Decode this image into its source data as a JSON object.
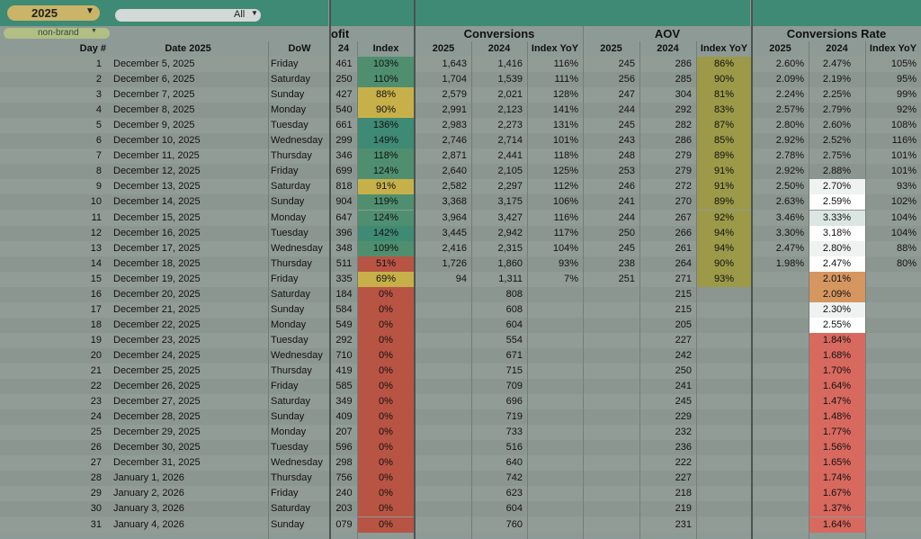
{
  "filters": {
    "year": "2025",
    "all": "All",
    "segment": "non-brand",
    "caret": "▼"
  },
  "group_headers": {
    "profit": "ofit",
    "conversions": "Conversions",
    "aov": "AOV",
    "conv_rate": "Conversions Rate"
  },
  "columns": {
    "day": "Day #",
    "date": "Date 2025",
    "dow": "DoW",
    "profit_2024": "24",
    "profit_index": "Index",
    "conv_2025": "2025",
    "conv_2024": "2024",
    "conv_yoy": "Index YoY",
    "aov_2025": "2025",
    "aov_2024": "2024",
    "aov_yoy": "Index YoY",
    "cr_2025": "2025",
    "cr_2024": "2024",
    "cr_yoy": "Index YoY"
  },
  "colors": {
    "teal": "#3f8a74",
    "green": "#4f8f70",
    "olive": "#9c9a48",
    "yellow": "#c7b04a",
    "orange": "#d69660",
    "red": "#b85444",
    "red_strong": "#d8695f",
    "white": "#ffffff",
    "cr_light": "#eef3f1",
    "cr_lighter": "#dbe5e1"
  },
  "rows": [
    {
      "day": "1",
      "date": "December 5, 2025",
      "dow": "Friday",
      "p24": "461",
      "pidx": "103%",
      "pidx_c": "green",
      "c25": "1,643",
      "c24": "1,416",
      "cyoy": "116%",
      "a25": "245",
      "a24": "286",
      "ayoy": "86%",
      "ayoy_c": "olive",
      "r25": "2.60%",
      "r24": "2.47%",
      "r24_c": "",
      "ryoy": "105%",
      "hl": false
    },
    {
      "day": "2",
      "date": "December 6, 2025",
      "dow": "Saturday",
      "p24": "250",
      "pidx": "110%",
      "pidx_c": "green",
      "c25": "1,704",
      "c24": "1,539",
      "cyoy": "111%",
      "a25": "256",
      "a24": "285",
      "ayoy": "90%",
      "ayoy_c": "olive",
      "r25": "2.09%",
      "r24": "2.19%",
      "r24_c": "",
      "ryoy": "95%",
      "hl": false
    },
    {
      "day": "3",
      "date": "December 7, 2025",
      "dow": "Sunday",
      "p24": "427",
      "pidx": "88%",
      "pidx_c": "yellow",
      "c25": "2,579",
      "c24": "2,021",
      "cyoy": "128%",
      "a25": "247",
      "a24": "304",
      "ayoy": "81%",
      "ayoy_c": "olive",
      "r25": "2.24%",
      "r24": "2.25%",
      "r24_c": "",
      "ryoy": "99%",
      "hl": false
    },
    {
      "day": "4",
      "date": "December 8, 2025",
      "dow": "Monday",
      "p24": "540",
      "pidx": "90%",
      "pidx_c": "yellow",
      "c25": "2,991",
      "c24": "2,123",
      "cyoy": "141%",
      "a25": "244",
      "a24": "292",
      "ayoy": "83%",
      "ayoy_c": "olive",
      "r25": "2.57%",
      "r24": "2.79%",
      "r24_c": "",
      "ryoy": "92%",
      "hl": false
    },
    {
      "day": "5",
      "date": "December 9, 2025",
      "dow": "Tuesday",
      "p24": "661",
      "pidx": "136%",
      "pidx_c": "teal",
      "c25": "2,983",
      "c24": "2,273",
      "cyoy": "131%",
      "a25": "245",
      "a24": "282",
      "ayoy": "87%",
      "ayoy_c": "olive",
      "r25": "2.80%",
      "r24": "2.60%",
      "r24_c": "",
      "ryoy": "108%",
      "hl": false
    },
    {
      "day": "6",
      "date": "December 10, 2025",
      "dow": "Wednesday",
      "p24": "299",
      "pidx": "149%",
      "pidx_c": "teal",
      "c25": "2,746",
      "c24": "2,714",
      "cyoy": "101%",
      "a25": "243",
      "a24": "286",
      "ayoy": "85%",
      "ayoy_c": "olive",
      "r25": "2.92%",
      "r24": "2.52%",
      "r24_c": "",
      "ryoy": "116%",
      "hl": false
    },
    {
      "day": "7",
      "date": "December 11, 2025",
      "dow": "Thursday",
      "p24": "346",
      "pidx": "118%",
      "pidx_c": "green",
      "c25": "2,871",
      "c24": "2,441",
      "cyoy": "118%",
      "a25": "248",
      "a24": "279",
      "ayoy": "89%",
      "ayoy_c": "olive",
      "r25": "2.78%",
      "r24": "2.75%",
      "r24_c": "",
      "ryoy": "101%",
      "hl": false
    },
    {
      "day": "8",
      "date": "December 12, 2025",
      "dow": "Friday",
      "p24": "699",
      "pidx": "124%",
      "pidx_c": "green",
      "c25": "2,640",
      "c24": "2,105",
      "cyoy": "125%",
      "a25": "253",
      "a24": "279",
      "ayoy": "91%",
      "ayoy_c": "olive",
      "r25": "2.92%",
      "r24": "2.88%",
      "r24_c": "",
      "ryoy": "101%",
      "hl": false
    },
    {
      "day": "9",
      "date": "December 13, 2025",
      "dow": "Saturday",
      "p24": "818",
      "pidx": "91%",
      "pidx_c": "yellow",
      "c25": "2,582",
      "c24": "2,297",
      "cyoy": "112%",
      "a25": "246",
      "a24": "272",
      "ayoy": "91%",
      "ayoy_c": "olive",
      "r25": "2.50%",
      "r24": "2.70%",
      "r24_c": "cr_light",
      "ryoy": "93%",
      "hl": true
    },
    {
      "day": "10",
      "date": "December 14, 2025",
      "dow": "Sunday",
      "p24": "904",
      "pidx": "119%",
      "pidx_c": "green",
      "c25": "3,368",
      "c24": "3,175",
      "cyoy": "106%",
      "a25": "241",
      "a24": "270",
      "ayoy": "89%",
      "ayoy_c": "olive",
      "r25": "2.63%",
      "r24": "2.59%",
      "r24_c": "white",
      "ryoy": "102%",
      "hl": true
    },
    {
      "day": "11",
      "date": "December 15, 2025",
      "dow": "Monday",
      "p24": "647",
      "pidx": "124%",
      "pidx_c": "green",
      "c25": "3,964",
      "c24": "3,427",
      "cyoy": "116%",
      "a25": "244",
      "a24": "267",
      "ayoy": "92%",
      "ayoy_c": "olive",
      "r25": "3.46%",
      "r24": "3.33%",
      "r24_c": "cr_lighter",
      "ryoy": "104%",
      "hl": true
    },
    {
      "day": "12",
      "date": "December 16, 2025",
      "dow": "Tuesday",
      "p24": "396",
      "pidx": "142%",
      "pidx_c": "teal",
      "c25": "3,445",
      "c24": "2,942",
      "cyoy": "117%",
      "a25": "250",
      "a24": "266",
      "ayoy": "94%",
      "ayoy_c": "olive",
      "r25": "3.30%",
      "r24": "3.18%",
      "r24_c": "white",
      "ryoy": "104%",
      "hl": true
    },
    {
      "day": "13",
      "date": "December 17, 2025",
      "dow": "Wednesday",
      "p24": "348",
      "pidx": "109%",
      "pidx_c": "green",
      "c25": "2,416",
      "c24": "2,315",
      "cyoy": "104%",
      "a25": "245",
      "a24": "261",
      "ayoy": "94%",
      "ayoy_c": "olive",
      "r25": "2.47%",
      "r24": "2.80%",
      "r24_c": "cr_light",
      "ryoy": "88%",
      "hl": true
    },
    {
      "day": "14",
      "date": "December 18, 2025",
      "dow": "Thursday",
      "p24": "511",
      "pidx": "51%",
      "pidx_c": "red",
      "c25": "1,726",
      "c24": "1,860",
      "cyoy": "93%",
      "a25": "238",
      "a24": "264",
      "ayoy": "90%",
      "ayoy_c": "olive",
      "r25": "1.98%",
      "r24": "2.47%",
      "r24_c": "white",
      "ryoy": "80%",
      "hl": true
    },
    {
      "day": "15",
      "date": "December 19, 2025",
      "dow": "Friday",
      "p24": "335",
      "pidx": "69%",
      "pidx_c": "yellow",
      "c25": "94",
      "c24": "1,311",
      "cyoy": "7%",
      "a25": "251",
      "a24": "271",
      "ayoy": "93%",
      "ayoy_c": "olive",
      "r25": "",
      "r24": "2.01%",
      "r24_c": "orange",
      "ryoy": "",
      "hl": true
    },
    {
      "day": "16",
      "date": "December 20, 2025",
      "dow": "Saturday",
      "p24": "184",
      "pidx": "0%",
      "pidx_c": "red",
      "c25": "",
      "c24": "808",
      "cyoy": "",
      "a25": "",
      "a24": "215",
      "ayoy": "",
      "ayoy_c": "",
      "r25": "",
      "r24": "2.09%",
      "r24_c": "orange",
      "ryoy": "",
      "hl": true
    },
    {
      "day": "17",
      "date": "December 21, 2025",
      "dow": "Sunday",
      "p24": "584",
      "pidx": "0%",
      "pidx_c": "red",
      "c25": "",
      "c24": "608",
      "cyoy": "",
      "a25": "",
      "a24": "215",
      "ayoy": "",
      "ayoy_c": "",
      "r25": "",
      "r24": "2.30%",
      "r24_c": "cr_light",
      "ryoy": "",
      "hl": true
    },
    {
      "day": "18",
      "date": "December 22, 2025",
      "dow": "Monday",
      "p24": "549",
      "pidx": "0%",
      "pidx_c": "red",
      "c25": "",
      "c24": "604",
      "cyoy": "",
      "a25": "",
      "a24": "205",
      "ayoy": "",
      "ayoy_c": "",
      "r25": "",
      "r24": "2.55%",
      "r24_c": "white",
      "ryoy": "",
      "hl": true
    },
    {
      "day": "19",
      "date": "December 23, 2025",
      "dow": "Tuesday",
      "p24": "292",
      "pidx": "0%",
      "pidx_c": "red",
      "c25": "",
      "c24": "554",
      "cyoy": "",
      "a25": "",
      "a24": "227",
      "ayoy": "",
      "ayoy_c": "",
      "r25": "",
      "r24": "1.84%",
      "r24_c": "red_strong",
      "ryoy": "",
      "hl": true
    },
    {
      "day": "20",
      "date": "December 24, 2025",
      "dow": "Wednesday",
      "p24": "710",
      "pidx": "0%",
      "pidx_c": "red",
      "c25": "",
      "c24": "671",
      "cyoy": "",
      "a25": "",
      "a24": "242",
      "ayoy": "",
      "ayoy_c": "",
      "r25": "",
      "r24": "1.68%",
      "r24_c": "red_strong",
      "ryoy": "",
      "hl": true
    },
    {
      "day": "21",
      "date": "December 25, 2025",
      "dow": "Thursday",
      "p24": "419",
      "pidx": "0%",
      "pidx_c": "red",
      "c25": "",
      "c24": "715",
      "cyoy": "",
      "a25": "",
      "a24": "250",
      "ayoy": "",
      "ayoy_c": "",
      "r25": "",
      "r24": "1.70%",
      "r24_c": "red_strong",
      "ryoy": "",
      "hl": true
    },
    {
      "day": "22",
      "date": "December 26, 2025",
      "dow": "Friday",
      "p24": "585",
      "pidx": "0%",
      "pidx_c": "red",
      "c25": "",
      "c24": "709",
      "cyoy": "",
      "a25": "",
      "a24": "241",
      "ayoy": "",
      "ayoy_c": "",
      "r25": "",
      "r24": "1.64%",
      "r24_c": "red_strong",
      "ryoy": "",
      "hl": true
    },
    {
      "day": "23",
      "date": "December 27, 2025",
      "dow": "Saturday",
      "p24": "349",
      "pidx": "0%",
      "pidx_c": "red",
      "c25": "",
      "c24": "696",
      "cyoy": "",
      "a25": "",
      "a24": "245",
      "ayoy": "",
      "ayoy_c": "",
      "r25": "",
      "r24": "1.47%",
      "r24_c": "red_strong",
      "ryoy": "",
      "hl": true
    },
    {
      "day": "24",
      "date": "December 28, 2025",
      "dow": "Sunday",
      "p24": "409",
      "pidx": "0%",
      "pidx_c": "red",
      "c25": "",
      "c24": "719",
      "cyoy": "",
      "a25": "",
      "a24": "229",
      "ayoy": "",
      "ayoy_c": "",
      "r25": "",
      "r24": "1.48%",
      "r24_c": "red_strong",
      "ryoy": "",
      "hl": true
    },
    {
      "day": "25",
      "date": "December 29, 2025",
      "dow": "Monday",
      "p24": "207",
      "pidx": "0%",
      "pidx_c": "red",
      "c25": "",
      "c24": "733",
      "cyoy": "",
      "a25": "",
      "a24": "232",
      "ayoy": "",
      "ayoy_c": "",
      "r25": "",
      "r24": "1.77%",
      "r24_c": "red_strong",
      "ryoy": "",
      "hl": true
    },
    {
      "day": "26",
      "date": "December 30, 2025",
      "dow": "Tuesday",
      "p24": "596",
      "pidx": "0%",
      "pidx_c": "red",
      "c25": "",
      "c24": "516",
      "cyoy": "",
      "a25": "",
      "a24": "236",
      "ayoy": "",
      "ayoy_c": "",
      "r25": "",
      "r24": "1.56%",
      "r24_c": "red_strong",
      "ryoy": "",
      "hl": true
    },
    {
      "day": "27",
      "date": "December 31, 2025",
      "dow": "Wednesday",
      "p24": "298",
      "pidx": "0%",
      "pidx_c": "red",
      "c25": "",
      "c24": "640",
      "cyoy": "",
      "a25": "",
      "a24": "222",
      "ayoy": "",
      "ayoy_c": "",
      "r25": "",
      "r24": "1.65%",
      "r24_c": "red_strong",
      "ryoy": "",
      "hl": true
    },
    {
      "day": "28",
      "date": "January 1, 2026",
      "dow": "Thursday",
      "p24": "756",
      "pidx": "0%",
      "pidx_c": "red",
      "c25": "",
      "c24": "742",
      "cyoy": "",
      "a25": "",
      "a24": "227",
      "ayoy": "",
      "ayoy_c": "",
      "r25": "",
      "r24": "1.74%",
      "r24_c": "red_strong",
      "ryoy": "",
      "hl": true
    },
    {
      "day": "29",
      "date": "January 2, 2026",
      "dow": "Friday",
      "p24": "240",
      "pidx": "0%",
      "pidx_c": "red",
      "c25": "",
      "c24": "623",
      "cyoy": "",
      "a25": "",
      "a24": "218",
      "ayoy": "",
      "ayoy_c": "",
      "r25": "",
      "r24": "1.67%",
      "r24_c": "red_strong",
      "ryoy": "",
      "hl": true
    },
    {
      "day": "30",
      "date": "January 3, 2026",
      "dow": "Saturday",
      "p24": "203",
      "pidx": "0%",
      "pidx_c": "red",
      "c25": "",
      "c24": "604",
      "cyoy": "",
      "a25": "",
      "a24": "219",
      "ayoy": "",
      "ayoy_c": "",
      "r25": "",
      "r24": "1.37%",
      "r24_c": "red_strong",
      "ryoy": "",
      "hl": true
    },
    {
      "day": "31",
      "date": "January 4, 2026",
      "dow": "Sunday",
      "p24": "079",
      "pidx": "0%",
      "pidx_c": "red",
      "c25": "",
      "c24": "760",
      "cyoy": "",
      "a25": "",
      "a24": "231",
      "ayoy": "",
      "ayoy_c": "",
      "r25": "",
      "r24": "1.64%",
      "r24_c": "red_strong",
      "ryoy": "",
      "hl": true
    }
  ]
}
